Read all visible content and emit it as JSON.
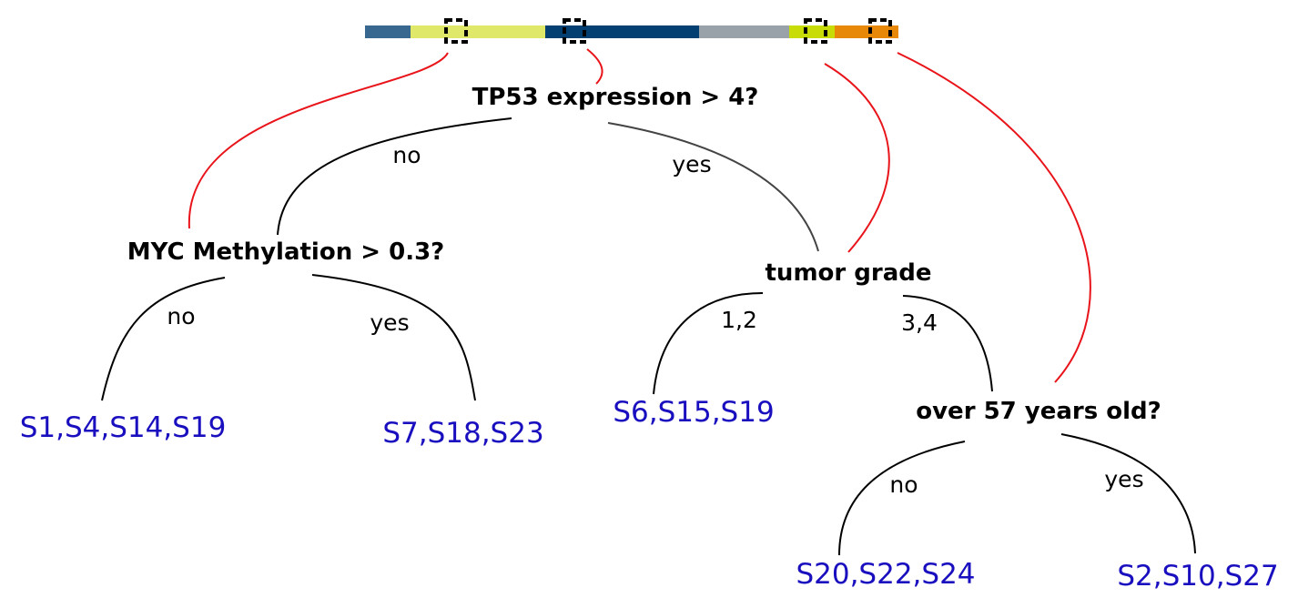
{
  "colorbar": {
    "segments": [
      {
        "color": "#386890"
      },
      {
        "color": "#dfe868"
      },
      {
        "color": "#033f70"
      },
      {
        "color": "#98a2a8"
      },
      {
        "color": "#c8dc08"
      },
      {
        "color": "#e88808"
      }
    ]
  },
  "tree": {
    "root": {
      "question": "TP53 expression > 4?",
      "no_label": "no",
      "yes_label": "yes"
    },
    "myc": {
      "question": "MYC Methylation > 0.3?",
      "no_label": "no",
      "yes_label": "yes"
    },
    "grade": {
      "question": "tumor grade",
      "left_label": "1,2",
      "right_label": "3,4"
    },
    "age": {
      "question": "over 57 years old?",
      "no_label": "no",
      "yes_label": "yes"
    },
    "leaves": {
      "myc_no": "S1,S4,S14,S19",
      "myc_yes": "S7,S18,S23",
      "grade_low": "S6,S15,S19",
      "age_no": "S20,S22,S24",
      "age_yes": "S2,S10,S27"
    }
  },
  "colors": {
    "leaf_text": "#1a0fbf",
    "link_line": "#e8141a"
  }
}
